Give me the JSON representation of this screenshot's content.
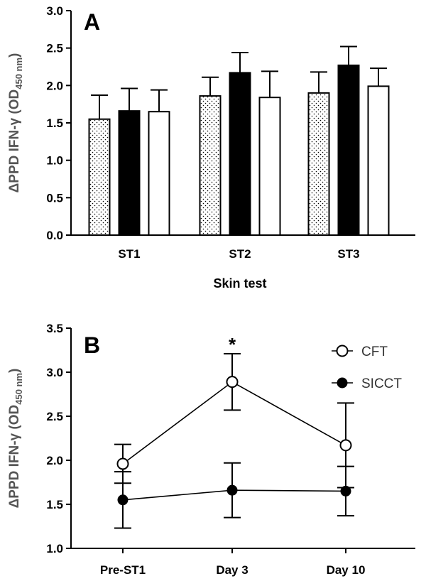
{
  "chart_data": [
    {
      "panel_label": "A",
      "type": "bar",
      "ylabel": {
        "main": "ΔPPD IFN-γ (OD",
        "sub": "450 nm",
        "close": ")"
      },
      "xlabel": "Skin test",
      "ylim": [
        0,
        3.0
      ],
      "yticks": [
        "0.0",
        "0.5",
        "1.0",
        "1.5",
        "2.0",
        "2.5",
        "3.0"
      ],
      "categories": [
        "ST1",
        "ST2",
        "ST3"
      ],
      "series": [
        {
          "fill": "dotted",
          "values": [
            1.55,
            1.86,
            1.9
          ],
          "errors": [
            0.32,
            0.25,
            0.28
          ]
        },
        {
          "fill": "black",
          "values": [
            1.66,
            2.17,
            2.27
          ],
          "errors": [
            0.3,
            0.27,
            0.25
          ]
        },
        {
          "fill": "white",
          "values": [
            1.65,
            1.84,
            1.99
          ],
          "errors": [
            0.29,
            0.35,
            0.24
          ]
        }
      ]
    },
    {
      "panel_label": "B",
      "type": "line",
      "ylabel": {
        "main": "ΔPPD IFN-γ (OD",
        "sub": "450 nm",
        "close": ")"
      },
      "ylim": [
        1.0,
        3.5
      ],
      "yticks": [
        "1.0",
        "1.5",
        "2.0",
        "2.5",
        "3.0",
        "3.5"
      ],
      "categories": [
        "Pre-ST1",
        "Day 3",
        "Day 10"
      ],
      "legend_position": "top-right",
      "annotations": [
        {
          "text": "*",
          "category": "Day 3"
        }
      ],
      "series": [
        {
          "name": "CFT",
          "marker": "open-circle",
          "values": [
            1.96,
            2.89,
            2.17
          ],
          "errors": [
            0.22,
            0.32,
            0.48
          ]
        },
        {
          "name": "SICCT",
          "marker": "filled-circle",
          "values": [
            1.55,
            1.66,
            1.65
          ],
          "errors": [
            0.32,
            0.31,
            0.28
          ]
        }
      ]
    }
  ]
}
